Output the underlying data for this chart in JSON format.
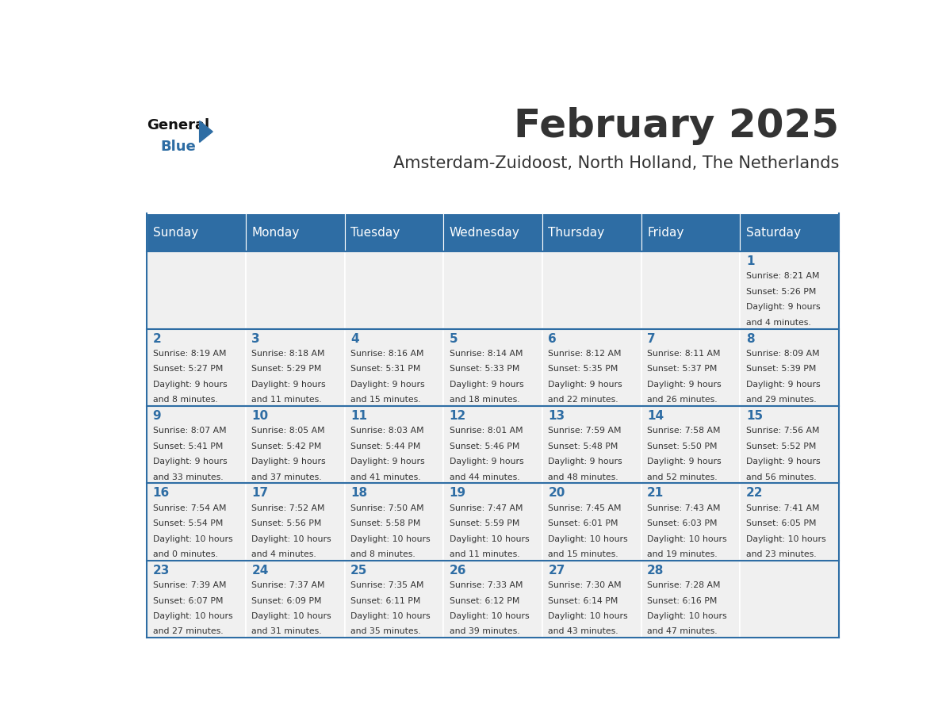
{
  "title": "February 2025",
  "subtitle": "Amsterdam-Zuidoost, North Holland, The Netherlands",
  "header_bg": "#2E6DA4",
  "header_text_color": "#FFFFFF",
  "cell_bg_light": "#F0F0F0",
  "border_color": "#2E6DA4",
  "text_color": "#333333",
  "day_headers": [
    "Sunday",
    "Monday",
    "Tuesday",
    "Wednesday",
    "Thursday",
    "Friday",
    "Saturday"
  ],
  "calendar": [
    [
      null,
      null,
      null,
      null,
      null,
      null,
      {
        "day": 1,
        "sunrise": "8:21 AM",
        "sunset": "5:26 PM",
        "daylight": "9 hours and 4 minutes."
      }
    ],
    [
      {
        "day": 2,
        "sunrise": "8:19 AM",
        "sunset": "5:27 PM",
        "daylight": "9 hours and 8 minutes."
      },
      {
        "day": 3,
        "sunrise": "8:18 AM",
        "sunset": "5:29 PM",
        "daylight": "9 hours and 11 minutes."
      },
      {
        "day": 4,
        "sunrise": "8:16 AM",
        "sunset": "5:31 PM",
        "daylight": "9 hours and 15 minutes."
      },
      {
        "day": 5,
        "sunrise": "8:14 AM",
        "sunset": "5:33 PM",
        "daylight": "9 hours and 18 minutes."
      },
      {
        "day": 6,
        "sunrise": "8:12 AM",
        "sunset": "5:35 PM",
        "daylight": "9 hours and 22 minutes."
      },
      {
        "day": 7,
        "sunrise": "8:11 AM",
        "sunset": "5:37 PM",
        "daylight": "9 hours and 26 minutes."
      },
      {
        "day": 8,
        "sunrise": "8:09 AM",
        "sunset": "5:39 PM",
        "daylight": "9 hours and 29 minutes."
      }
    ],
    [
      {
        "day": 9,
        "sunrise": "8:07 AM",
        "sunset": "5:41 PM",
        "daylight": "9 hours and 33 minutes."
      },
      {
        "day": 10,
        "sunrise": "8:05 AM",
        "sunset": "5:42 PM",
        "daylight": "9 hours and 37 minutes."
      },
      {
        "day": 11,
        "sunrise": "8:03 AM",
        "sunset": "5:44 PM",
        "daylight": "9 hours and 41 minutes."
      },
      {
        "day": 12,
        "sunrise": "8:01 AM",
        "sunset": "5:46 PM",
        "daylight": "9 hours and 44 minutes."
      },
      {
        "day": 13,
        "sunrise": "7:59 AM",
        "sunset": "5:48 PM",
        "daylight": "9 hours and 48 minutes."
      },
      {
        "day": 14,
        "sunrise": "7:58 AM",
        "sunset": "5:50 PM",
        "daylight": "9 hours and 52 minutes."
      },
      {
        "day": 15,
        "sunrise": "7:56 AM",
        "sunset": "5:52 PM",
        "daylight": "9 hours and 56 minutes."
      }
    ],
    [
      {
        "day": 16,
        "sunrise": "7:54 AM",
        "sunset": "5:54 PM",
        "daylight": "10 hours and 0 minutes."
      },
      {
        "day": 17,
        "sunrise": "7:52 AM",
        "sunset": "5:56 PM",
        "daylight": "10 hours and 4 minutes."
      },
      {
        "day": 18,
        "sunrise": "7:50 AM",
        "sunset": "5:58 PM",
        "daylight": "10 hours and 8 minutes."
      },
      {
        "day": 19,
        "sunrise": "7:47 AM",
        "sunset": "5:59 PM",
        "daylight": "10 hours and 11 minutes."
      },
      {
        "day": 20,
        "sunrise": "7:45 AM",
        "sunset": "6:01 PM",
        "daylight": "10 hours and 15 minutes."
      },
      {
        "day": 21,
        "sunrise": "7:43 AM",
        "sunset": "6:03 PM",
        "daylight": "10 hours and 19 minutes."
      },
      {
        "day": 22,
        "sunrise": "7:41 AM",
        "sunset": "6:05 PM",
        "daylight": "10 hours and 23 minutes."
      }
    ],
    [
      {
        "day": 23,
        "sunrise": "7:39 AM",
        "sunset": "6:07 PM",
        "daylight": "10 hours and 27 minutes."
      },
      {
        "day": 24,
        "sunrise": "7:37 AM",
        "sunset": "6:09 PM",
        "daylight": "10 hours and 31 minutes."
      },
      {
        "day": 25,
        "sunrise": "7:35 AM",
        "sunset": "6:11 PM",
        "daylight": "10 hours and 35 minutes."
      },
      {
        "day": 26,
        "sunrise": "7:33 AM",
        "sunset": "6:12 PM",
        "daylight": "10 hours and 39 minutes."
      },
      {
        "day": 27,
        "sunrise": "7:30 AM",
        "sunset": "6:14 PM",
        "daylight": "10 hours and 43 minutes."
      },
      {
        "day": 28,
        "sunrise": "7:28 AM",
        "sunset": "6:16 PM",
        "daylight": "10 hours and 47 minutes."
      },
      null
    ]
  ],
  "logo_triangle_color": "#2E6DA4",
  "logo_general_color": "#111111",
  "logo_blue_color": "#2E6DA4"
}
